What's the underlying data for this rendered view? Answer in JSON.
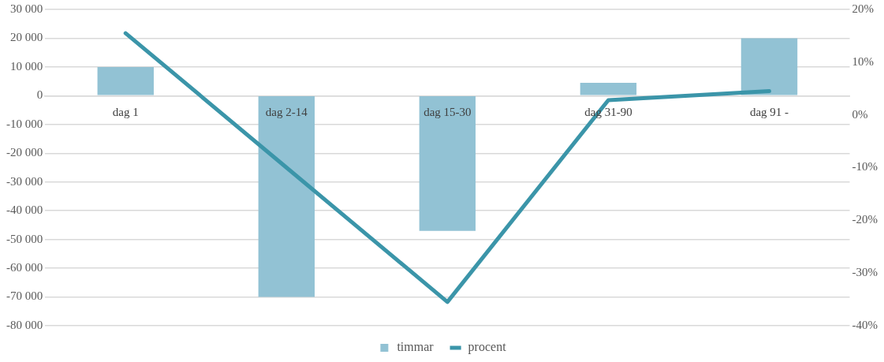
{
  "chart_data": {
    "type": "bar",
    "categories": [
      "dag 1",
      "dag 2-14",
      "dag 15-30",
      "dag 31-90",
      "dag 91 -"
    ],
    "series": [
      {
        "name": "timmar",
        "color": "#92c2d4",
        "values": [
          10000,
          -70000,
          -47000,
          4500,
          20000
        ]
      },
      {
        "name": "procent",
        "type": "line",
        "axis": "y2",
        "color": "#3b95a9",
        "values": [
          15.5,
          -10,
          -35.5,
          2.8,
          4.5
        ]
      }
    ],
    "ylim": [
      -80000,
      30000
    ],
    "yticks": [
      {
        "value": -80000,
        "label": "-80 000"
      },
      {
        "value": -70000,
        "label": "-70 000"
      },
      {
        "value": -60000,
        "label": "-60 000"
      },
      {
        "value": -50000,
        "label": "-50 000"
      },
      {
        "value": -40000,
        "label": "-40 000"
      },
      {
        "value": -30000,
        "label": "-30 000"
      },
      {
        "value": -20000,
        "label": "-20 000"
      },
      {
        "value": -10000,
        "label": "-10 000"
      },
      {
        "value": 0,
        "label": "0"
      },
      {
        "value": 10000,
        "label": "10 000"
      },
      {
        "value": 20000,
        "label": "20 000"
      },
      {
        "value": 30000,
        "label": "30 000"
      }
    ],
    "y2lim": [
      -40,
      20
    ],
    "y2ticks": [
      {
        "value": -40,
        "label": "-40%"
      },
      {
        "value": -30,
        "label": "-30%"
      },
      {
        "value": -20,
        "label": "-20%"
      },
      {
        "value": -10,
        "label": "-10%"
      },
      {
        "value": 0,
        "label": "0%"
      },
      {
        "value": 10,
        "label": "10%"
      },
      {
        "value": 20,
        "label": "20%"
      }
    ],
    "grid": "y",
    "legend": "bottom",
    "marker": "none"
  }
}
